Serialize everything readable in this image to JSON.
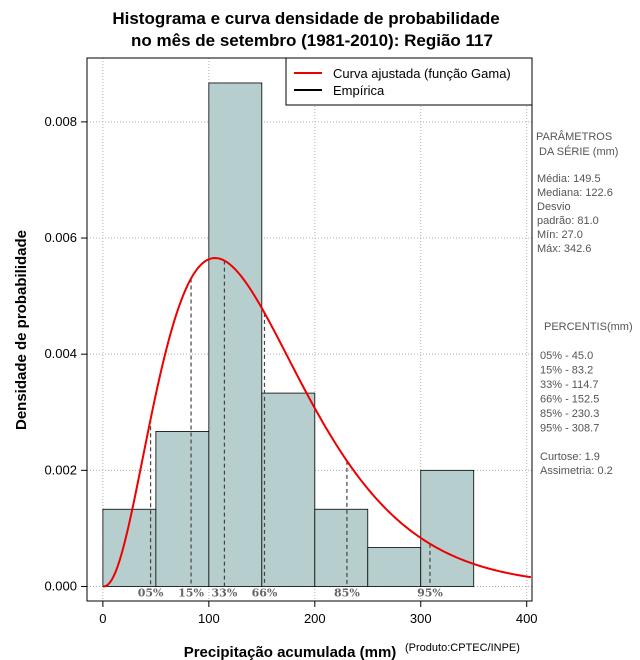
{
  "chart_data": {
    "type": "bar",
    "title": "Histograma e curva densidade de probabilidade",
    "subtitle": "no mês de setembro (1981-2010): Região 117",
    "xlabel": "Precipitação acumulada (mm)",
    "ylabel": "Densidade de probabilidade",
    "credit": "(Produto:CPTEC/INPE)",
    "xlim": [
      -15,
      405
    ],
    "ylim": [
      -0.00025,
      0.0091
    ],
    "x_ticks": [
      0,
      100,
      200,
      300,
      400
    ],
    "y_ticks": [
      0.0,
      0.002,
      0.004,
      0.006,
      0.008
    ],
    "y_tick_labels": [
      "0.000",
      "0.002",
      "0.004",
      "0.006",
      "0.008"
    ],
    "grid": true,
    "bins": [
      {
        "from": 0,
        "to": 50,
        "density": 0.00133
      },
      {
        "from": 50,
        "to": 100,
        "density": 0.00267
      },
      {
        "from": 100,
        "to": 150,
        "density": 0.00867
      },
      {
        "from": 150,
        "to": 200,
        "density": 0.00333
      },
      {
        "from": 200,
        "to": 250,
        "density": 0.00133
      },
      {
        "from": 250,
        "to": 300,
        "density": 0.00067
      },
      {
        "from": 300,
        "to": 350,
        "density": 0.002
      }
    ],
    "gamma_fit": {
      "shape": 3.41,
      "scale": 43.9
    },
    "legend": {
      "position": "top-right",
      "entries": [
        {
          "label": "Curva ajustada (função Gama)",
          "color": "#ee0000"
        },
        {
          "label": "Empírica",
          "color": "#000000"
        }
      ]
    },
    "percentile_markers": [
      {
        "label": "05%",
        "value": 45.0
      },
      {
        "label": "15%",
        "value": 83.2
      },
      {
        "label": "33%",
        "value": 114.7
      },
      {
        "label": "66%",
        "value": 152.5
      },
      {
        "label": "85%",
        "value": 230.3
      },
      {
        "label": "95%",
        "value": 308.7
      }
    ]
  },
  "side_panel": {
    "params_title_1": "PARÂMETROS",
    "params_title_2": "DA SÉRIE (mm)",
    "stats": [
      "Média:  149.5",
      "Mediana:  122.6",
      "Desvio",
      "padrão:  81.0",
      "Mín:  27.0",
      "Máx:  342.6"
    ],
    "percentis_title": "PERCENTIS(mm)",
    "percentis": [
      "05% -   45.0",
      "15% -   83.2",
      "33% -  114.7",
      "66% -  152.5",
      "85% -  230.3",
      "95% -  308.7"
    ],
    "shape_stats": [
      "Curtose:   1.9",
      "Assimetria:   0.2"
    ]
  },
  "colors": {
    "bar_fill": "#b6cece",
    "curve": "#ee0000",
    "grid": "#b0b0b0"
  }
}
